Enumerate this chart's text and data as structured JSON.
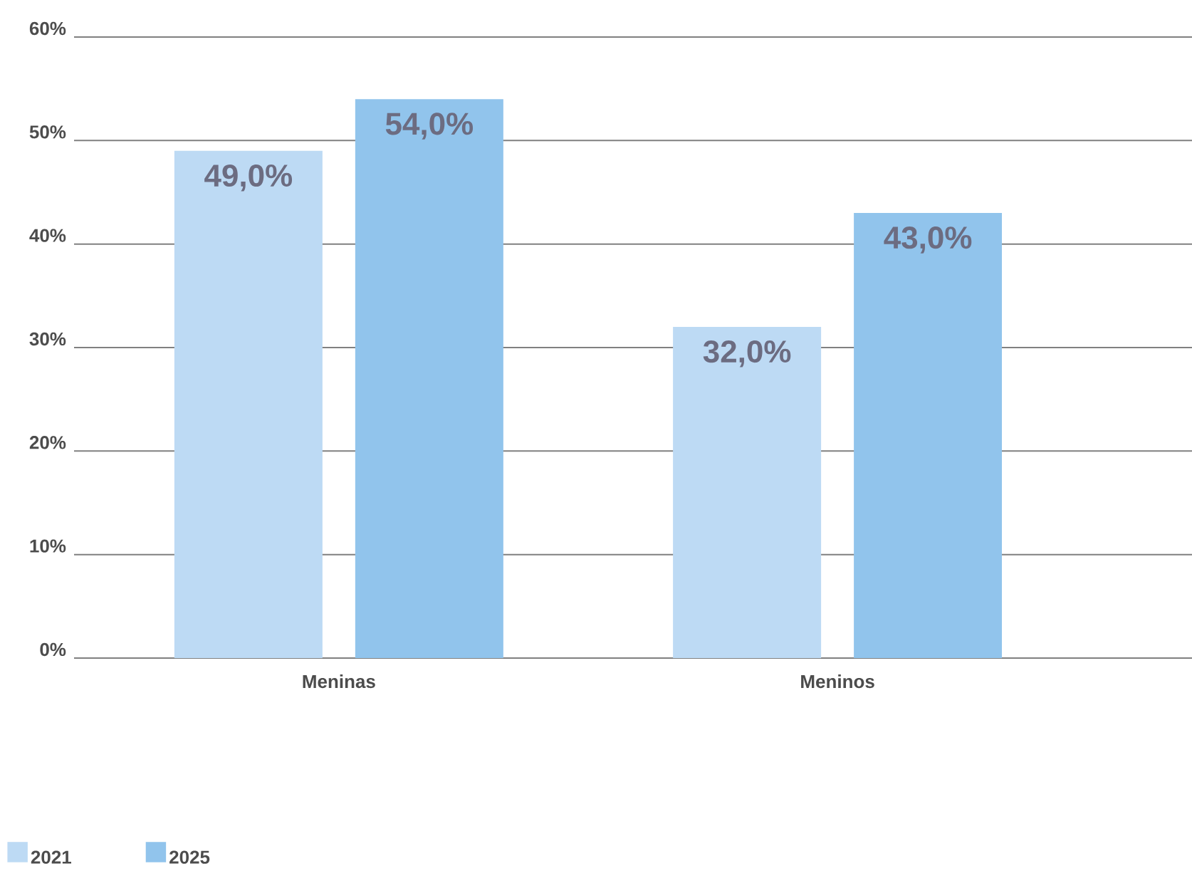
{
  "chart_data": {
    "type": "bar",
    "categories": [
      "Meninas",
      "Meninos"
    ],
    "series": [
      {
        "name": "2021",
        "color": "#bddaf4",
        "values": [
          49.0,
          32.0
        ],
        "value_labels": [
          "49,0%",
          "32,0%"
        ]
      },
      {
        "name": "2025",
        "color": "#91c4ec",
        "values": [
          54.0,
          43.0
        ],
        "value_labels": [
          "54,0%",
          "43,0%"
        ]
      }
    ],
    "ylim": [
      0,
      60
    ],
    "yticks": [
      {
        "value": 0,
        "label": "0%"
      },
      {
        "value": 10,
        "label": "10%"
      },
      {
        "value": 20,
        "label": "20%"
      },
      {
        "value": 30,
        "label": "30%"
      },
      {
        "value": 40,
        "label": "40%"
      },
      {
        "value": 50,
        "label": "50%"
      },
      {
        "value": 60,
        "label": "60%"
      }
    ],
    "grid": "y",
    "legend": "bottom left"
  }
}
